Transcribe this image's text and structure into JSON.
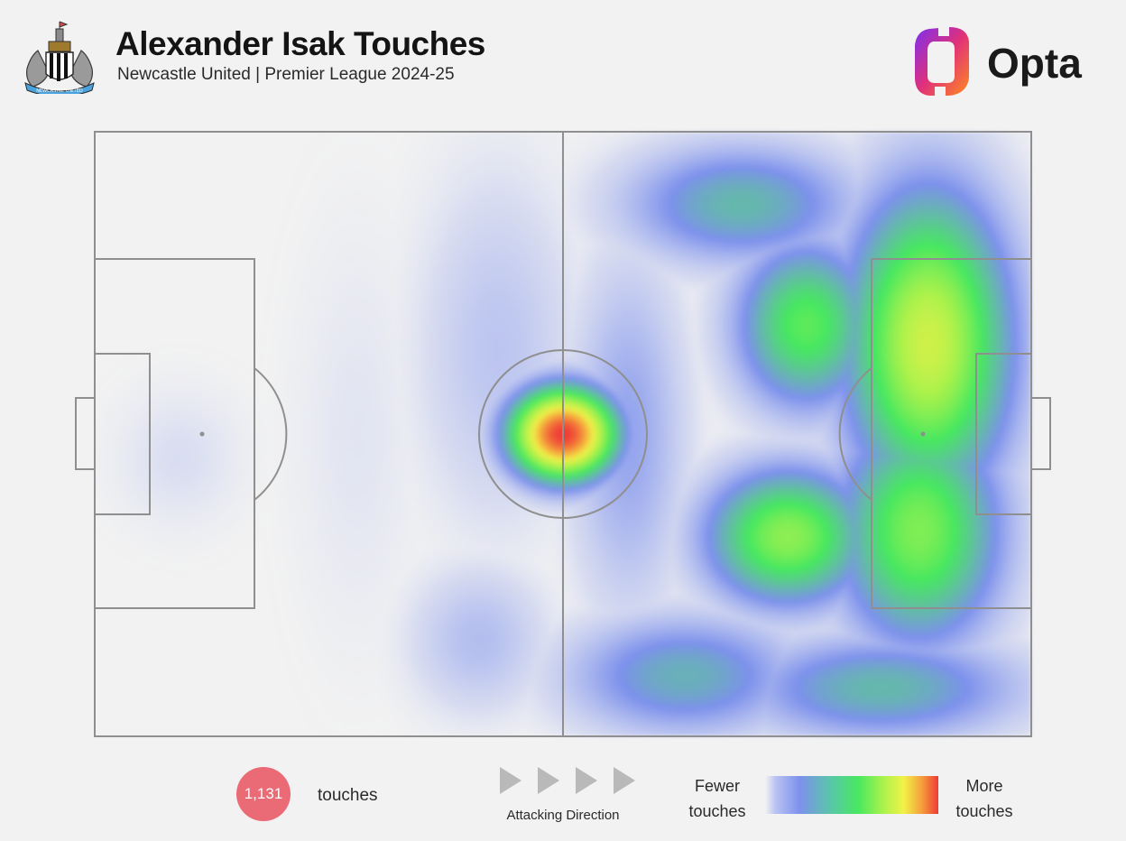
{
  "header": {
    "title": "Alexander Isak Touches",
    "subtitle": "Newcastle United | Premier League 2024-25",
    "brand": "Opta"
  },
  "footer": {
    "total_touches": "1,131",
    "touches_label": "touches",
    "direction_label": "Attacking Direction",
    "legend_low_line1": "Fewer",
    "legend_low_line2": "touches",
    "legend_high_line1": "More",
    "legend_high_line2": "touches"
  },
  "colors": {
    "background": "#f2f2f2",
    "pitch_lines": "#8f8f8f",
    "badge": "#ea6b76",
    "heat_low": "#7d91ec",
    "heat_mid": "#49e860",
    "heat_high": "#ef3a36",
    "opta_gradient_start": "#7b2ff2",
    "opta_gradient_end": "#ff8a1e"
  },
  "chart_data": {
    "type": "heatmap",
    "title": "Alexander Isak Touches",
    "subtitle": "Newcastle United | Premier League 2024-25",
    "total": 1131,
    "pitch": {
      "length": 100,
      "width": 100,
      "attacking_direction": "left-to-right"
    },
    "color_scale": [
      "#f2f2f2",
      "#7d91ec",
      "#49e860",
      "#f2f248",
      "#ef3a36"
    ],
    "density_regions": [
      {
        "x": 50,
        "y": 50,
        "sx": 4.5,
        "sy": 6,
        "intensity": 1.0
      },
      {
        "x": 89,
        "y": 35,
        "sx": 7,
        "sy": 20,
        "intensity": 0.72
      },
      {
        "x": 76,
        "y": 32,
        "sx": 6,
        "sy": 11,
        "intensity": 0.55
      },
      {
        "x": 88,
        "y": 66,
        "sx": 7,
        "sy": 15,
        "intensity": 0.6
      },
      {
        "x": 74,
        "y": 67,
        "sx": 7,
        "sy": 9,
        "intensity": 0.62
      },
      {
        "x": 69,
        "y": 12,
        "sx": 10,
        "sy": 8,
        "intensity": 0.4
      },
      {
        "x": 63,
        "y": 90,
        "sx": 10,
        "sy": 8,
        "intensity": 0.38
      },
      {
        "x": 84,
        "y": 92,
        "sx": 12,
        "sy": 7,
        "intensity": 0.4
      },
      {
        "x": 96,
        "y": 40,
        "sx": 3,
        "sy": 16,
        "intensity": 0.35
      },
      {
        "x": 57,
        "y": 50,
        "sx": 5,
        "sy": 24,
        "intensity": 0.26
      },
      {
        "x": 43,
        "y": 36,
        "sx": 7,
        "sy": 24,
        "intensity": 0.18
      },
      {
        "x": 41,
        "y": 84,
        "sx": 6,
        "sy": 10,
        "intensity": 0.2
      },
      {
        "x": 28,
        "y": 50,
        "sx": 6,
        "sy": 30,
        "intensity": 0.08
      },
      {
        "x": 9,
        "y": 54,
        "sx": 6,
        "sy": 10,
        "intensity": 0.1
      }
    ]
  }
}
